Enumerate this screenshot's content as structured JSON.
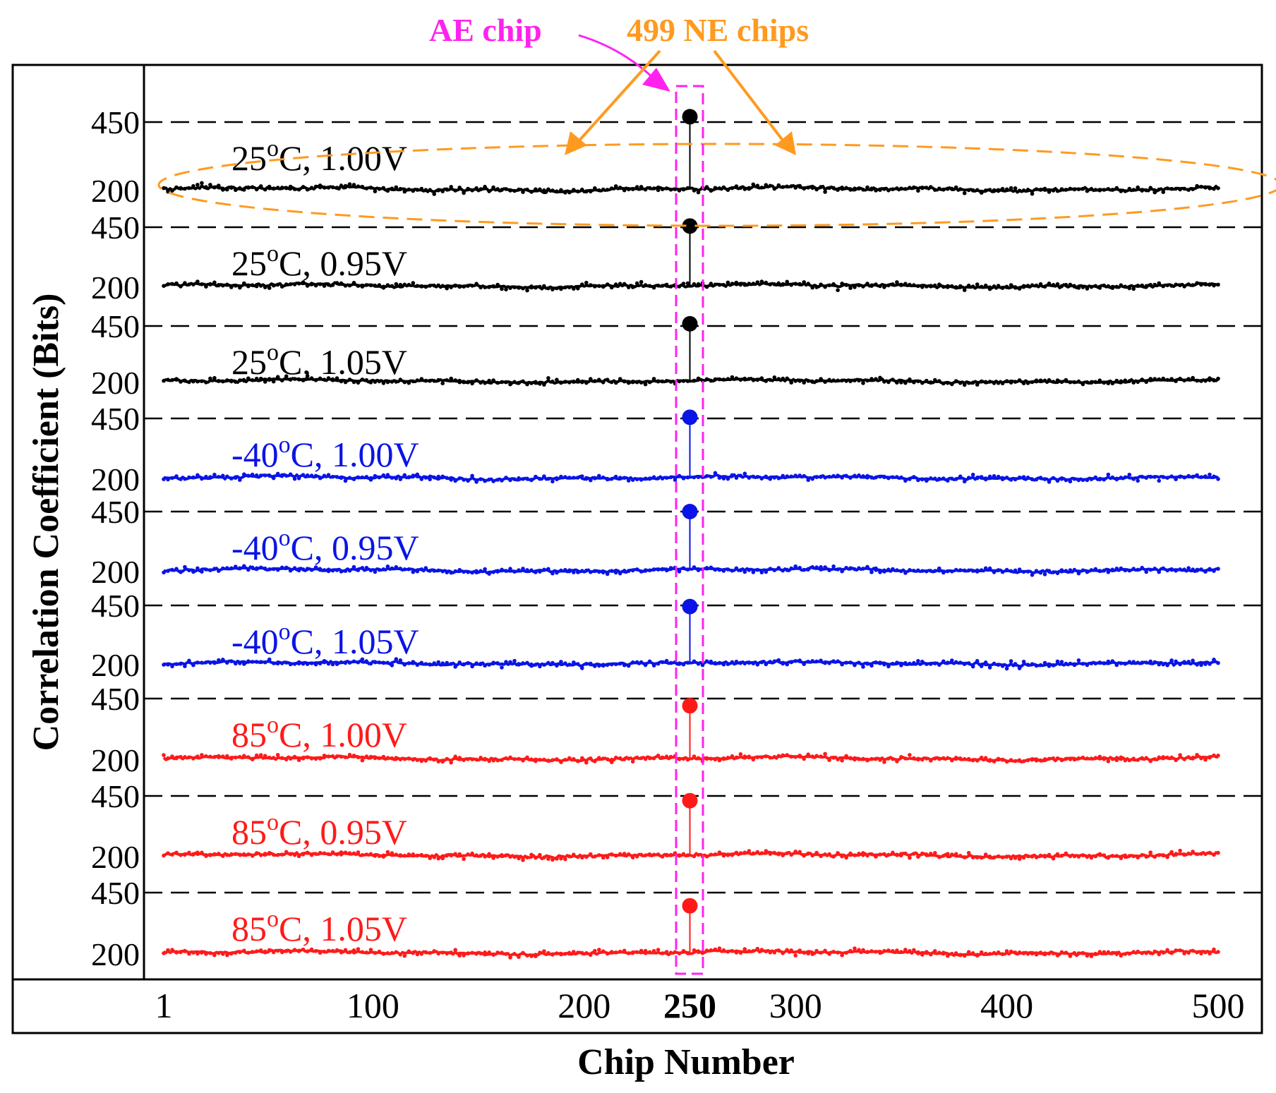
{
  "chart_data": {
    "type": "scatter",
    "xlabel": "Chip Number",
    "ylabel": "Correlation Coefficient (Bits)",
    "x_ticks": [
      "1",
      "100",
      "200",
      "250",
      "300",
      "400",
      "500"
    ],
    "x_tick_values": [
      1,
      100,
      200,
      250,
      300,
      400,
      500
    ],
    "highlight_tick": "250",
    "xlim": [
      1,
      500
    ],
    "ae_chip_index": 250,
    "annotations": {
      "ae_chip": "AE chip",
      "ne_chips": "499 NE chips"
    },
    "colors": {
      "black": "#000000",
      "blue": "#0a14e6",
      "red": "#ff1a1a",
      "magenta": "#ff22ee",
      "orange": "#ff9a1f"
    },
    "panels": [
      {
        "label": "25",
        "volt": ", 1.00V",
        "color": "black",
        "y_low_tick": "200",
        "y_high_tick": "450",
        "ne_mean": 200,
        "ae_value": 470
      },
      {
        "label": "25",
        "volt": ", 0.95V",
        "color": "black",
        "y_low_tick": "200",
        "y_high_tick": "450",
        "ne_mean": 200,
        "ae_value": 455
      },
      {
        "label": "25",
        "volt": ", 1.05V",
        "color": "black",
        "y_low_tick": "200",
        "y_high_tick": "450",
        "ne_mean": 200,
        "ae_value": 460
      },
      {
        "label": "-40",
        "volt": ", 1.00V",
        "color": "blue",
        "y_low_tick": "200",
        "y_high_tick": "450",
        "ne_mean": 200,
        "ae_value": 455
      },
      {
        "label": "-40",
        "volt": ", 0.95V",
        "color": "blue",
        "y_low_tick": "200",
        "y_high_tick": "450",
        "ne_mean": 200,
        "ae_value": 450
      },
      {
        "label": "-40",
        "volt": ", 1.05V",
        "color": "blue",
        "y_low_tick": "200",
        "y_high_tick": "450",
        "ne_mean": 200,
        "ae_value": 445
      },
      {
        "label": "85",
        "volt": ", 1.00V",
        "color": "red",
        "y_low_tick": "200",
        "y_high_tick": "450",
        "ne_mean": 200,
        "ae_value": 420
      },
      {
        "label": "85",
        "volt": ", 0.95V",
        "color": "red",
        "y_low_tick": "200",
        "y_high_tick": "450",
        "ne_mean": 200,
        "ae_value": 430
      },
      {
        "label": "85",
        "volt": ", 1.05V",
        "color": "red",
        "y_low_tick": "200",
        "y_high_tick": "450",
        "ne_mean": 200,
        "ae_value": 395
      }
    ],
    "degree_symbol": "o",
    "unit_suffix": "C"
  }
}
